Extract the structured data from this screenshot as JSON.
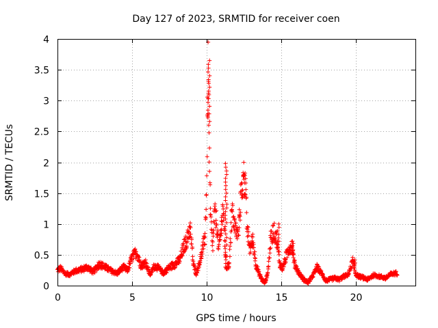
{
  "chart_data": {
    "type": "scatter",
    "title": "Day 127 of 2023, SRMTID for receiver coen",
    "xlabel": "GPS time / hours",
    "ylabel": "SRMTID / TECUs",
    "xlim": [
      0,
      24
    ],
    "ylim": [
      0,
      4
    ],
    "xticks": [
      0,
      5,
      10,
      15,
      20
    ],
    "yticks": [
      0,
      0.5,
      1,
      1.5,
      2,
      2.5,
      3,
      3.5,
      4
    ],
    "xtick_labels": [
      "0",
      "5",
      "10",
      "15",
      "20"
    ],
    "ytick_labels": [
      "0",
      "0.5",
      "1",
      "1.5",
      "2",
      "2.5",
      "3",
      "3.5",
      "4"
    ],
    "grid": true,
    "marker": "+",
    "series": [
      {
        "name": "SRMTID",
        "color": "#ff0000",
        "envelope": {
          "x": [
            0,
            0.2,
            0.5,
            0.8,
            1.2,
            1.6,
            2.0,
            2.4,
            2.8,
            3.2,
            3.6,
            4.0,
            4.4,
            4.7,
            5.0,
            5.3,
            5.6,
            5.9,
            6.2,
            6.5,
            6.8,
            7.1,
            7.5,
            7.9,
            8.2,
            8.5,
            8.7,
            8.9,
            9.1,
            9.3,
            9.5,
            9.7,
            9.9,
            10.0,
            10.1,
            10.15,
            10.25,
            10.4,
            10.5,
            10.6,
            10.7,
            10.8,
            10.9,
            11.0,
            11.1,
            11.3,
            11.5,
            11.7,
            11.9,
            12.1,
            12.3,
            12.5,
            12.6,
            12.7,
            12.9,
            13.1,
            13.3,
            13.5,
            13.7,
            13.9,
            14.1,
            14.3,
            14.5,
            14.7,
            14.9,
            15.1,
            15.3,
            15.5,
            15.7,
            15.9,
            16.2,
            16.5,
            16.8,
            17.1,
            17.4,
            17.7,
            18.0,
            18.3,
            18.6,
            18.9,
            19.2,
            19.5,
            19.8,
            20.0,
            20.2,
            20.5,
            20.8,
            21.2,
            21.6,
            22.0,
            22.3,
            22.6,
            22.8
          ],
          "y": [
            0.25,
            0.28,
            0.2,
            0.18,
            0.24,
            0.26,
            0.3,
            0.22,
            0.35,
            0.3,
            0.24,
            0.2,
            0.3,
            0.25,
            0.45,
            0.55,
            0.32,
            0.38,
            0.18,
            0.32,
            0.28,
            0.2,
            0.3,
            0.35,
            0.42,
            0.65,
            0.75,
            0.95,
            0.35,
            0.2,
            0.35,
            0.55,
            0.8,
            1.6,
            3.62,
            2.6,
            1.2,
            0.6,
            1.1,
            1.15,
            0.95,
            0.6,
            0.75,
            1.0,
            1.3,
            0.3,
            0.32,
            1.2,
            0.95,
            0.8,
            1.45,
            1.78,
            1.65,
            0.95,
            0.6,
            0.75,
            0.35,
            0.2,
            0.1,
            0.05,
            0.2,
            0.75,
            0.9,
            0.75,
            0.35,
            0.28,
            0.45,
            0.6,
            0.65,
            0.35,
            0.2,
            0.1,
            0.05,
            0.15,
            0.3,
            0.2,
            0.08,
            0.1,
            0.12,
            0.1,
            0.15,
            0.18,
            0.4,
            0.18,
            0.15,
            0.13,
            0.1,
            0.17,
            0.15,
            0.12,
            0.18,
            0.2,
            0.2
          ]
        },
        "spikes": [
          {
            "x": 10.15,
            "y": 3.65
          },
          {
            "x": 11.3,
            "y": 1.98
          },
          {
            "x": 12.5,
            "y": 1.8
          },
          {
            "x": 14.8,
            "y": 1.0
          },
          {
            "x": 15.8,
            "y": 0.72
          },
          {
            "x": 19.9,
            "y": 0.42
          }
        ]
      }
    ]
  }
}
